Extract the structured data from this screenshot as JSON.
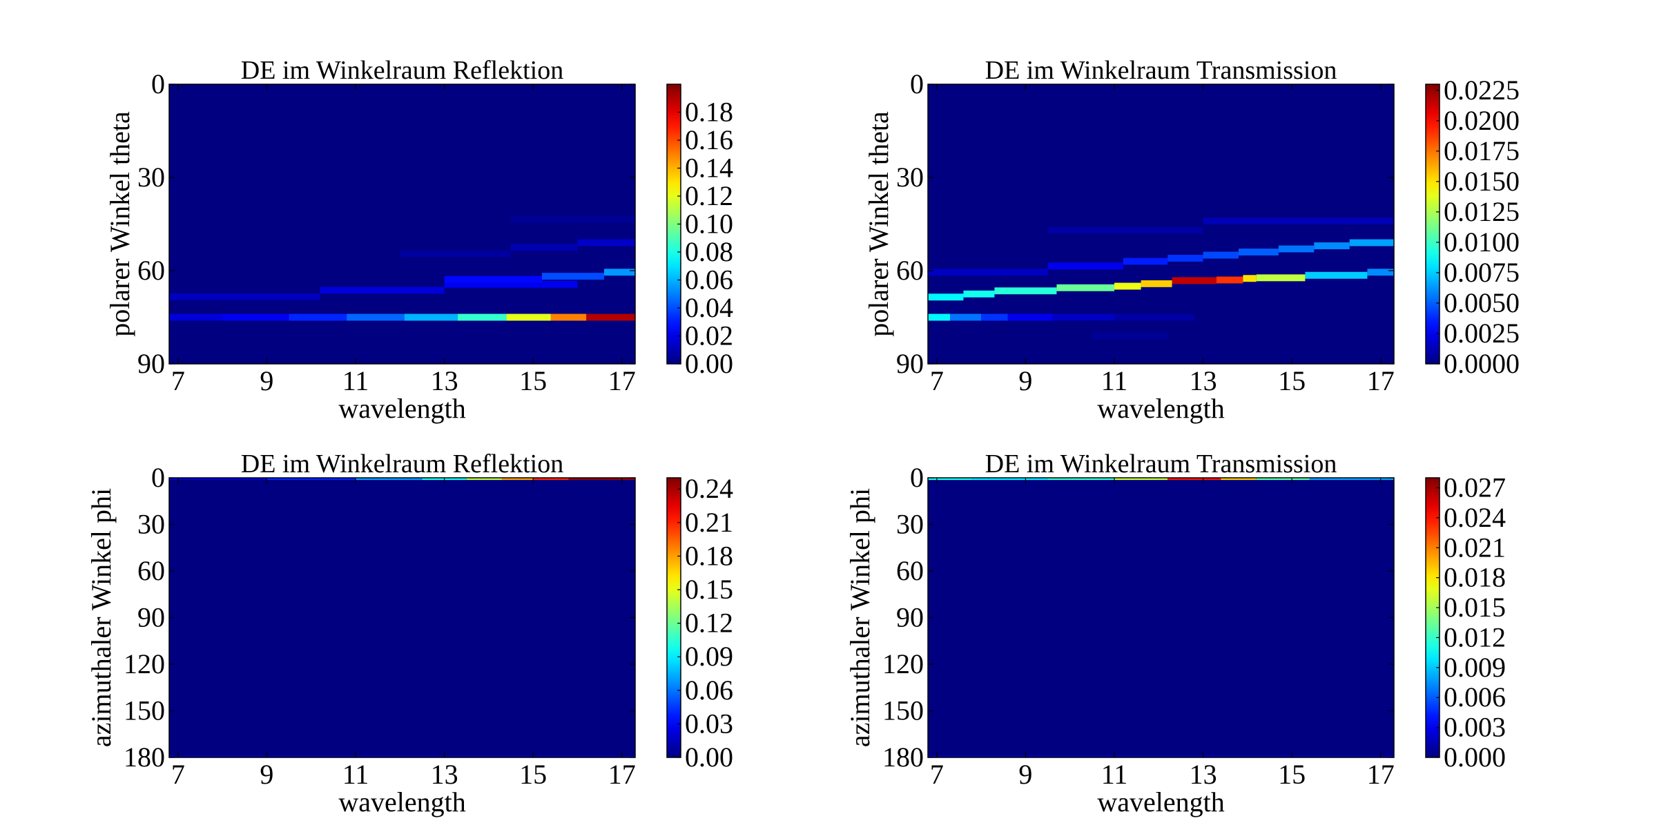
{
  "chart_data": [
    {
      "type": "heatmap",
      "title": "DE im Winkelraum Reflektion",
      "xlabel": "wavelength",
      "ylabel": "polarer Winkel theta",
      "xlim": [
        6.8,
        17.3
      ],
      "ylim": [
        90,
        0
      ],
      "y_inverted": true,
      "xticks": [
        "7",
        "9",
        "11",
        "13",
        "15",
        "17"
      ],
      "yticks": [
        "0",
        "30",
        "60",
        "90"
      ],
      "colorbar": {
        "range": [
          0,
          0.2
        ],
        "ticks": [
          "0.00",
          "0.02",
          "0.04",
          "0.06",
          "0.08",
          "0.10",
          "0.12",
          "0.14",
          "0.16",
          "0.18"
        ]
      },
      "background_value": 0,
      "segments": [
        {
          "x0": 6.8,
          "x1": 10.2,
          "y": 68.4,
          "v": 0.012
        },
        {
          "x0": 10.2,
          "x1": 13.0,
          "y": 66.3,
          "v": 0.018
        },
        {
          "x0": 13.0,
          "x1": 16.0,
          "y": 64.4,
          "v": 0.022
        },
        {
          "x0": 13.0,
          "x1": 15.2,
          "y": 62.8,
          "v": 0.026
        },
        {
          "x0": 15.2,
          "x1": 16.6,
          "y": 61.8,
          "v": 0.04
        },
        {
          "x0": 16.6,
          "x1": 17.3,
          "y": 60.5,
          "v": 0.055
        },
        {
          "x0": 12.0,
          "x1": 14.5,
          "y": 54.5,
          "v": 0.006
        },
        {
          "x0": 14.5,
          "x1": 16.0,
          "y": 52.5,
          "v": 0.01
        },
        {
          "x0": 16.0,
          "x1": 17.3,
          "y": 51.0,
          "v": 0.014
        },
        {
          "x0": 14.5,
          "x1": 17.3,
          "y": 43.5,
          "v": 0.004
        },
        {
          "x0": 6.8,
          "x1": 8.0,
          "y": 75.0,
          "v": 0.018
        },
        {
          "x0": 8.0,
          "x1": 9.5,
          "y": 75.0,
          "v": 0.022
        },
        {
          "x0": 9.5,
          "x1": 10.8,
          "y": 75.0,
          "v": 0.032
        },
        {
          "x0": 10.8,
          "x1": 12.1,
          "y": 75.0,
          "v": 0.045
        },
        {
          "x0": 12.1,
          "x1": 13.3,
          "y": 75.0,
          "v": 0.06
        },
        {
          "x0": 13.3,
          "x1": 14.4,
          "y": 75.0,
          "v": 0.085
        },
        {
          "x0": 14.4,
          "x1": 15.4,
          "y": 75.0,
          "v": 0.12
        },
        {
          "x0": 15.4,
          "x1": 16.2,
          "y": 75.0,
          "v": 0.15
        },
        {
          "x0": 16.2,
          "x1": 17.3,
          "y": 75.0,
          "v": 0.19
        }
      ]
    },
    {
      "type": "heatmap",
      "title": "DE im Winkelraum Transmission",
      "xlabel": "wavelength",
      "ylabel": "polarer Winkel theta",
      "xlim": [
        6.8,
        17.3
      ],
      "ylim": [
        90,
        0
      ],
      "y_inverted": true,
      "xticks": [
        "7",
        "9",
        "11",
        "13",
        "15",
        "17"
      ],
      "yticks": [
        "0",
        "30",
        "60",
        "90"
      ],
      "colorbar": {
        "range": [
          0,
          0.023
        ],
        "ticks": [
          "0.0000",
          "0.0025",
          "0.0050",
          "0.0075",
          "0.0100",
          "0.0125",
          "0.0150",
          "0.0175",
          "0.0200",
          "0.0225"
        ]
      },
      "background_value": 0,
      "segments": [
        {
          "x0": 6.8,
          "x1": 7.6,
          "y": 68.5,
          "v": 0.0085
        },
        {
          "x0": 7.6,
          "x1": 8.3,
          "y": 67.5,
          "v": 0.009
        },
        {
          "x0": 8.3,
          "x1": 9.7,
          "y": 66.5,
          "v": 0.0095
        },
        {
          "x0": 9.7,
          "x1": 11.0,
          "y": 65.5,
          "v": 0.011
        },
        {
          "x0": 11.0,
          "x1": 11.6,
          "y": 65.0,
          "v": 0.014
        },
        {
          "x0": 11.6,
          "x1": 12.3,
          "y": 64.2,
          "v": 0.0155
        },
        {
          "x0": 12.3,
          "x1": 13.3,
          "y": 63.2,
          "v": 0.0215
        },
        {
          "x0": 13.3,
          "x1": 13.9,
          "y": 63.0,
          "v": 0.019
        },
        {
          "x0": 13.9,
          "x1": 14.2,
          "y": 62.5,
          "v": 0.015
        },
        {
          "x0": 14.2,
          "x1": 15.3,
          "y": 62.3,
          "v": 0.013
        },
        {
          "x0": 15.3,
          "x1": 16.7,
          "y": 61.5,
          "v": 0.0075
        },
        {
          "x0": 16.7,
          "x1": 17.3,
          "y": 60.5,
          "v": 0.006
        },
        {
          "x0": 6.8,
          "x1": 9.5,
          "y": 60.5,
          "v": 0.0015
        },
        {
          "x0": 9.5,
          "x1": 11.2,
          "y": 58.5,
          "v": 0.0025
        },
        {
          "x0": 11.2,
          "x1": 12.2,
          "y": 57.0,
          "v": 0.0035
        },
        {
          "x0": 12.2,
          "x1": 13.0,
          "y": 56.0,
          "v": 0.004
        },
        {
          "x0": 13.0,
          "x1": 13.8,
          "y": 55.0,
          "v": 0.0045
        },
        {
          "x0": 13.8,
          "x1": 14.7,
          "y": 54.0,
          "v": 0.005
        },
        {
          "x0": 14.7,
          "x1": 15.5,
          "y": 53.0,
          "v": 0.0055
        },
        {
          "x0": 15.5,
          "x1": 16.3,
          "y": 52.0,
          "v": 0.006
        },
        {
          "x0": 16.3,
          "x1": 17.3,
          "y": 51.0,
          "v": 0.0065
        },
        {
          "x0": 9.5,
          "x1": 13.0,
          "y": 47.0,
          "v": 0.0008
        },
        {
          "x0": 13.0,
          "x1": 17.3,
          "y": 44.0,
          "v": 0.0012
        },
        {
          "x0": 6.8,
          "x1": 7.3,
          "y": 75.0,
          "v": 0.0085
        },
        {
          "x0": 7.3,
          "x1": 8.0,
          "y": 75.0,
          "v": 0.0055
        },
        {
          "x0": 8.0,
          "x1": 8.6,
          "y": 75.0,
          "v": 0.004
        },
        {
          "x0": 8.6,
          "x1": 9.6,
          "y": 75.0,
          "v": 0.0025
        },
        {
          "x0": 9.6,
          "x1": 11.0,
          "y": 75.0,
          "v": 0.0015
        },
        {
          "x0": 11.0,
          "x1": 12.8,
          "y": 75.0,
          "v": 0.0008
        },
        {
          "x0": 10.5,
          "x1": 12.2,
          "y": 81.0,
          "v": 0.0005
        }
      ]
    },
    {
      "type": "heatmap",
      "title": "DE im Winkelraum Reflektion",
      "xlabel": "wavelength",
      "ylabel": "azimuthaler Winkel phi",
      "xlim": [
        6.8,
        17.3
      ],
      "ylim": [
        180,
        0
      ],
      "y_inverted": true,
      "xticks": [
        "7",
        "9",
        "11",
        "13",
        "15",
        "17"
      ],
      "yticks": [
        "0",
        "30",
        "60",
        "90",
        "120",
        "150",
        "180"
      ],
      "colorbar": {
        "range": [
          0,
          0.25
        ],
        "ticks": [
          "0.00",
          "0.03",
          "0.06",
          "0.09",
          "0.12",
          "0.15",
          "0.18",
          "0.21",
          "0.24"
        ]
      },
      "background_value": 0,
      "segments": [
        {
          "x0": 6.8,
          "x1": 9.0,
          "y": 0.6,
          "v": 0.02
        },
        {
          "x0": 9.0,
          "x1": 11.0,
          "y": 0.6,
          "v": 0.04
        },
        {
          "x0": 11.0,
          "x1": 12.5,
          "y": 0.6,
          "v": 0.07
        },
        {
          "x0": 12.5,
          "x1": 13.5,
          "y": 0.6,
          "v": 0.1
        },
        {
          "x0": 13.5,
          "x1": 14.3,
          "y": 0.6,
          "v": 0.14
        },
        {
          "x0": 14.3,
          "x1": 15.0,
          "y": 0.6,
          "v": 0.18
        },
        {
          "x0": 15.0,
          "x1": 15.8,
          "y": 0.6,
          "v": 0.21
        },
        {
          "x0": 15.8,
          "x1": 17.3,
          "y": 0.6,
          "v": 0.245
        },
        {
          "x0": 6.8,
          "x1": 17.3,
          "y": 179.5,
          "v": 0.012
        }
      ]
    },
    {
      "type": "heatmap",
      "title": "DE im Winkelraum Transmission",
      "xlabel": "wavelength",
      "ylabel": "azimuthaler Winkel phi",
      "xlim": [
        6.8,
        17.3
      ],
      "ylim": [
        180,
        0
      ],
      "y_inverted": true,
      "xticks": [
        "7",
        "9",
        "11",
        "13",
        "15",
        "17"
      ],
      "yticks": [
        "0",
        "30",
        "60",
        "90",
        "120",
        "150",
        "180"
      ],
      "colorbar": {
        "range": [
          0,
          0.028
        ],
        "ticks": [
          "0.000",
          "0.003",
          "0.006",
          "0.009",
          "0.012",
          "0.015",
          "0.018",
          "0.021",
          "0.024",
          "0.027"
        ]
      },
      "background_value": 0,
      "segments": [
        {
          "x0": 6.8,
          "x1": 7.8,
          "y": 0.6,
          "v": 0.011
        },
        {
          "x0": 7.8,
          "x1": 9.5,
          "y": 0.6,
          "v": 0.01
        },
        {
          "x0": 9.5,
          "x1": 11.0,
          "y": 0.6,
          "v": 0.012
        },
        {
          "x0": 11.0,
          "x1": 12.2,
          "y": 0.6,
          "v": 0.016
        },
        {
          "x0": 12.2,
          "x1": 13.4,
          "y": 0.6,
          "v": 0.024
        },
        {
          "x0": 13.4,
          "x1": 14.2,
          "y": 0.6,
          "v": 0.019
        },
        {
          "x0": 14.2,
          "x1": 15.4,
          "y": 0.6,
          "v": 0.013
        },
        {
          "x0": 15.4,
          "x1": 17.3,
          "y": 0.6,
          "v": 0.008
        },
        {
          "x0": 6.8,
          "x1": 17.3,
          "y": 179.5,
          "v": 0.0016
        }
      ]
    }
  ]
}
